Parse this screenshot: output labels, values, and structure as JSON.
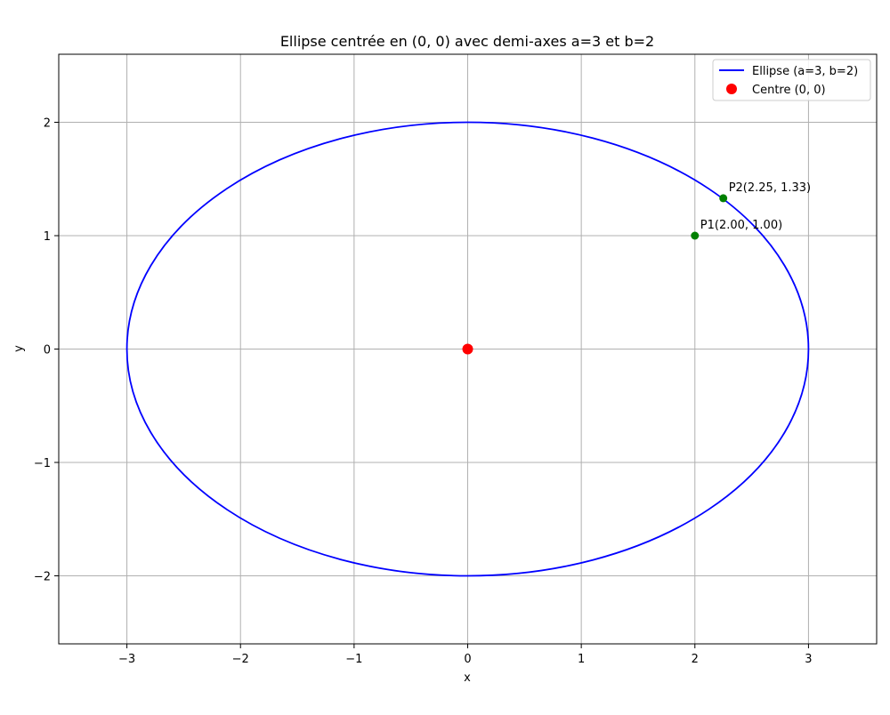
{
  "chart_data": {
    "type": "line",
    "title": "Ellipse centrée en (0, 0) avec demi-axes a=3 et b=2",
    "xlabel": "x",
    "ylabel": "y",
    "xlim": [
      -3.6,
      3.6
    ],
    "ylim": [
      -2.6,
      2.6
    ],
    "xticks": [
      -3,
      -2,
      -1,
      0,
      1,
      2,
      3
    ],
    "yticks": [
      -2,
      -1,
      0,
      1,
      2
    ],
    "xtick_labels": [
      "−3",
      "−2",
      "−1",
      "0",
      "1",
      "2",
      "3"
    ],
    "ytick_labels": [
      "−2",
      "−1",
      "0",
      "1",
      "2"
    ],
    "grid": true,
    "legend_position": "top-right",
    "series": [
      {
        "name": "Ellipse (a=3, b=2)",
        "kind": "ellipse",
        "center": [
          0,
          0
        ],
        "a": 3,
        "b": 2,
        "color": "#0000ff"
      },
      {
        "name": "Centre (0, 0)",
        "kind": "point",
        "x": 0,
        "y": 0,
        "color": "#ff0000"
      }
    ],
    "points": [
      {
        "label": "P1(2.00, 1.00)",
        "x": 2.0,
        "y": 1.0,
        "color": "#008000"
      },
      {
        "label": "P2(2.25, 1.33)",
        "x": 2.25,
        "y": 1.33,
        "color": "#008000"
      }
    ]
  }
}
